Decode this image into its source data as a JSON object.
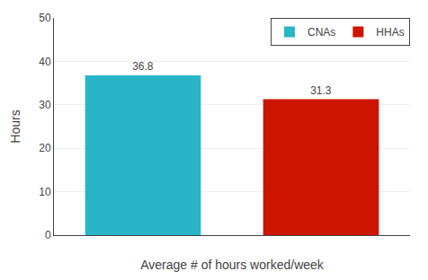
{
  "chart_data": {
    "type": "bar",
    "xlabel": "Average # of hours worked/week",
    "ylabel": "Hours",
    "categories": [
      "CNAs",
      "HHAs"
    ],
    "values": [
      36.8,
      31.3
    ],
    "colors": [
      "#29b5c8",
      "#cc1500"
    ],
    "ylim": [
      0,
      50
    ],
    "yticks": [
      0,
      10,
      20,
      30,
      40,
      50
    ],
    "grid": true,
    "legend": "upper right",
    "data_labels": true,
    "tick_labels": "y"
  }
}
